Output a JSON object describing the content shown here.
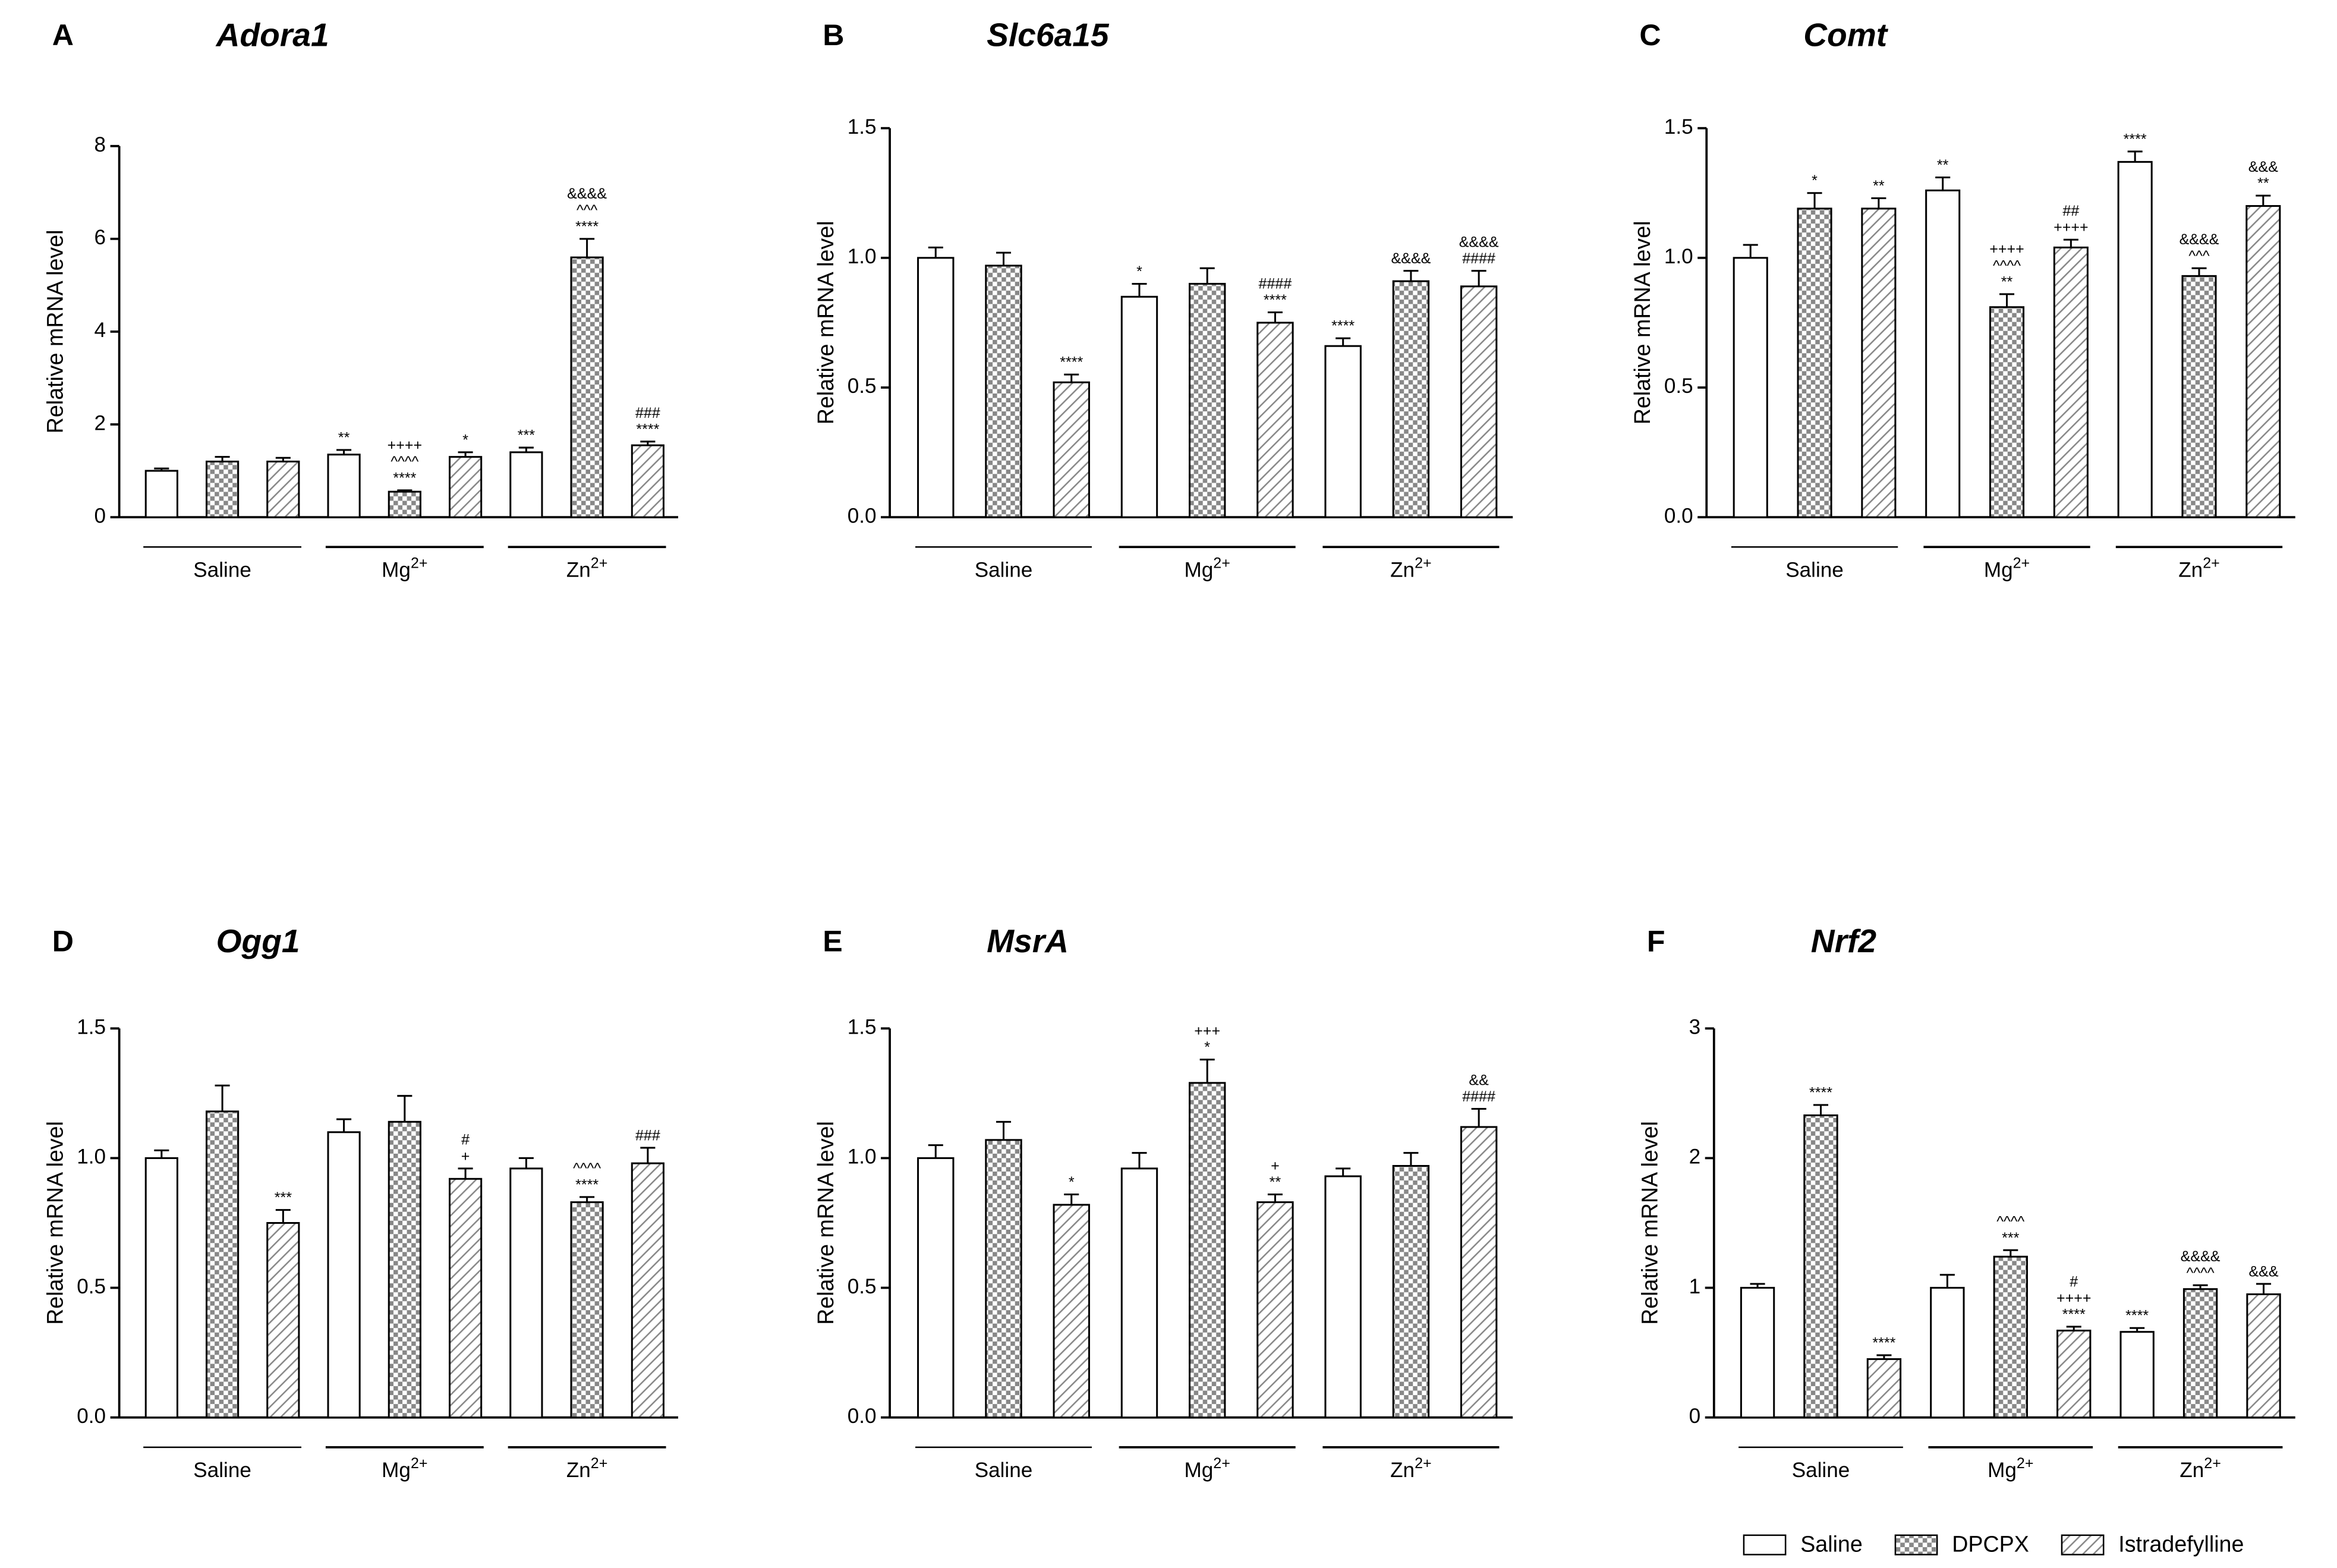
{
  "legend": [
    {
      "name": "Saline",
      "fill": "plain"
    },
    {
      "name": "DPCPX",
      "fill": "checker"
    },
    {
      "name": "Istradefylline",
      "fill": "hatch"
    }
  ],
  "chart_data": [
    {
      "type": "bar",
      "panel": "A",
      "title": "Adora1",
      "ylabel": "Relative mRNA level",
      "groups": [
        {
          "text": "Saline"
        },
        {
          "text": "Mg",
          "sup": "2+"
        },
        {
          "text": "Zn",
          "sup": "2+"
        }
      ],
      "ylim": [
        0,
        8
      ],
      "yticks": [
        0,
        2,
        4,
        6,
        8
      ],
      "series": [
        {
          "values": [
            1.0,
            1.35,
            1.4
          ],
          "errors": [
            0.05,
            0.1,
            0.1
          ],
          "annotations": [
            [],
            [
              "**"
            ],
            [
              "***"
            ]
          ]
        },
        {
          "values": [
            1.2,
            0.55,
            5.6
          ],
          "errors": [
            0.1,
            0.03,
            0.4
          ],
          "annotations": [
            [],
            [
              "++++",
              "^^^^",
              "****"
            ],
            [
              "&&&&",
              "^^^",
              "****"
            ]
          ]
        },
        {
          "values": [
            1.2,
            1.3,
            1.55
          ],
          "errors": [
            0.08,
            0.1,
            0.08
          ],
          "annotations": [
            [],
            [
              "*"
            ],
            [
              "###",
              "****"
            ]
          ]
        }
      ]
    },
    {
      "type": "bar",
      "panel": "B",
      "title": "Slc6a15",
      "ylabel": "Relative mRNA level",
      "groups": [
        {
          "text": "Saline"
        },
        {
          "text": "Mg",
          "sup": "2+"
        },
        {
          "text": "Zn",
          "sup": "2+"
        }
      ],
      "ylim": [
        0,
        1.5
      ],
      "yticks": [
        {
          "value": 0,
          "label": "0.0"
        },
        0.5,
        {
          "value": 1,
          "label": "1.0"
        },
        1.5
      ],
      "series": [
        {
          "values": [
            1.0,
            0.85,
            0.66
          ],
          "errors": [
            0.04,
            0.05,
            0.03
          ],
          "annotations": [
            [],
            [
              "*"
            ],
            [
              "****"
            ]
          ]
        },
        {
          "values": [
            0.97,
            0.9,
            0.91
          ],
          "errors": [
            0.05,
            0.06,
            0.04
          ],
          "annotations": [
            [],
            [],
            [
              "&&&&"
            ]
          ]
        },
        {
          "values": [
            0.52,
            0.75,
            0.89
          ],
          "errors": [
            0.03,
            0.04,
            0.06
          ],
          "annotations": [
            [
              "****"
            ],
            [
              "####",
              "****"
            ],
            [
              "&&&&",
              "####"
            ]
          ]
        }
      ]
    },
    {
      "type": "bar",
      "panel": "C",
      "title": "Comt",
      "ylabel": "Relative mRNA level",
      "groups": [
        {
          "text": "Saline"
        },
        {
          "text": "Mg",
          "sup": "2+"
        },
        {
          "text": "Zn",
          "sup": "2+"
        }
      ],
      "ylim": [
        0,
        1.5
      ],
      "yticks": [
        {
          "value": 0,
          "label": "0.0"
        },
        0.5,
        {
          "value": 1,
          "label": "1.0"
        },
        1.5
      ],
      "series": [
        {
          "values": [
            1.0,
            1.26,
            1.37
          ],
          "errors": [
            0.05,
            0.05,
            0.04
          ],
          "annotations": [
            [],
            [
              "**"
            ],
            [
              "****"
            ]
          ]
        },
        {
          "values": [
            1.19,
            0.81,
            0.93
          ],
          "errors": [
            0.06,
            0.05,
            0.03
          ],
          "annotations": [
            [
              "*"
            ],
            [
              "++++",
              "^^^^",
              "**"
            ],
            [
              "&&&&",
              "^^^"
            ]
          ]
        },
        {
          "values": [
            1.19,
            1.04,
            1.2
          ],
          "errors": [
            0.04,
            0.03,
            0.04
          ],
          "annotations": [
            [
              "**"
            ],
            [
              "##",
              "++++"
            ],
            [
              "&&&",
              "**"
            ]
          ]
        }
      ]
    },
    {
      "type": "bar",
      "panel": "D",
      "title": "Ogg1",
      "ylabel": "Relative mRNA level",
      "groups": [
        {
          "text": "Saline"
        },
        {
          "text": "Mg",
          "sup": "2+"
        },
        {
          "text": "Zn",
          "sup": "2+"
        }
      ],
      "ylim": [
        0,
        1.5
      ],
      "yticks": [
        {
          "value": 0,
          "label": "0.0"
        },
        0.5,
        {
          "value": 1,
          "label": "1.0"
        },
        1.5
      ],
      "series": [
        {
          "values": [
            1.0,
            1.1,
            0.96
          ],
          "errors": [
            0.03,
            0.05,
            0.04
          ],
          "annotations": [
            [],
            [],
            []
          ]
        },
        {
          "values": [
            1.18,
            1.14,
            0.83
          ],
          "errors": [
            0.1,
            0.1,
            0.02
          ],
          "annotations": [
            [],
            [],
            [
              "^^^^",
              "****"
            ]
          ]
        },
        {
          "values": [
            0.75,
            0.92,
            0.98
          ],
          "errors": [
            0.05,
            0.04,
            0.06
          ],
          "annotations": [
            [
              "***"
            ],
            [
              "#",
              "+"
            ],
            [
              "###"
            ]
          ]
        }
      ]
    },
    {
      "type": "bar",
      "panel": "E",
      "title": "MsrA",
      "ylabel": "Relative mRNA level",
      "groups": [
        {
          "text": "Saline"
        },
        {
          "text": "Mg",
          "sup": "2+"
        },
        {
          "text": "Zn",
          "sup": "2+"
        }
      ],
      "ylim": [
        0,
        1.5
      ],
      "yticks": [
        {
          "value": 0,
          "label": "0.0"
        },
        0.5,
        {
          "value": 1,
          "label": "1.0"
        },
        1.5
      ],
      "series": [
        {
          "values": [
            1.0,
            0.96,
            0.93
          ],
          "errors": [
            0.05,
            0.06,
            0.03
          ],
          "annotations": [
            [],
            [],
            []
          ]
        },
        {
          "values": [
            1.07,
            1.29,
            0.97
          ],
          "errors": [
            0.07,
            0.09,
            0.05
          ],
          "annotations": [
            [],
            [
              "+++",
              "*"
            ],
            []
          ]
        },
        {
          "values": [
            0.82,
            0.83,
            1.12
          ],
          "errors": [
            0.04,
            0.03,
            0.07
          ],
          "annotations": [
            [
              "*"
            ],
            [
              "+",
              "**"
            ],
            [
              "&&",
              "####"
            ]
          ]
        }
      ]
    },
    {
      "type": "bar",
      "panel": "F",
      "title": "Nrf2",
      "ylabel": "Relative mRNA level",
      "groups": [
        {
          "text": "Saline"
        },
        {
          "text": "Mg",
          "sup": "2+"
        },
        {
          "text": "Zn",
          "sup": "2+"
        }
      ],
      "ylim": [
        0,
        3
      ],
      "yticks": [
        0,
        1,
        2,
        3
      ],
      "series": [
        {
          "values": [
            1.0,
            1.0,
            0.66
          ],
          "errors": [
            0.03,
            0.1,
            0.03
          ],
          "annotations": [
            [],
            [],
            [
              "****"
            ]
          ]
        },
        {
          "values": [
            2.33,
            1.24,
            0.99
          ],
          "errors": [
            0.08,
            0.05,
            0.03
          ],
          "annotations": [
            [
              "****"
            ],
            [
              "^^^^",
              "***"
            ],
            [
              "&&&&",
              "^^^^"
            ]
          ]
        },
        {
          "values": [
            0.45,
            0.67,
            0.95
          ],
          "errors": [
            0.03,
            0.03,
            0.08
          ],
          "annotations": [
            [
              "****"
            ],
            [
              "#",
              "++++",
              "****"
            ],
            [
              "&&&"
            ]
          ]
        }
      ]
    }
  ]
}
